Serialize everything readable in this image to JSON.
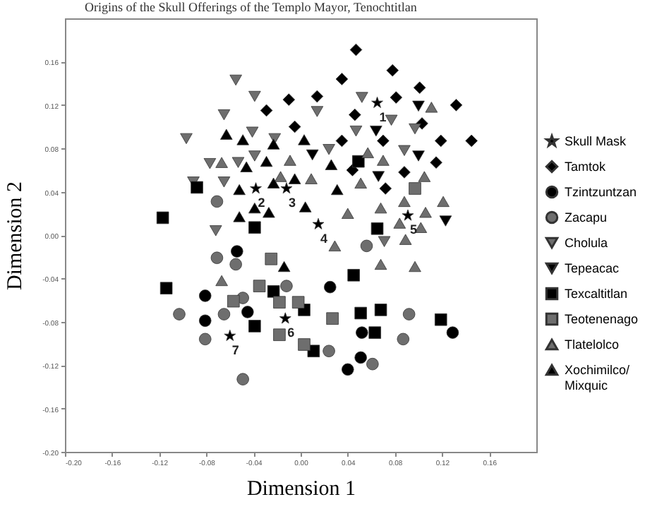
{
  "chart_data": {
    "type": "scatter",
    "xlabel": "Dimension 1",
    "ylabel": "Dimension 2",
    "xlim": [
      -0.2,
      0.2
    ],
    "ylim": [
      -0.2,
      0.2
    ],
    "xticks": [
      {
        "value": -0.2,
        "label": "-0.20"
      },
      {
        "value": -0.16,
        "label": "-0.16"
      },
      {
        "value": -0.12,
        "label": "-0.12"
      },
      {
        "value": -0.08,
        "label": "-0.08"
      },
      {
        "value": -0.04,
        "label": "-0.04"
      },
      {
        "value": 0,
        "label": "0.00"
      },
      {
        "value": 0.04,
        "label": "0.04"
      },
      {
        "value": 0.08,
        "label": "0.08"
      },
      {
        "value": 0.12,
        "label": "0.12"
      },
      {
        "value": 0.16,
        "label": "0.16"
      }
    ],
    "yticks": [
      {
        "value": -0.2,
        "label": "-0.20"
      },
      {
        "value": -0.16,
        "label": "-0.16"
      },
      {
        "value": -0.12,
        "label": "-0.12"
      },
      {
        "value": -0.08,
        "label": "-0.08"
      },
      {
        "value": -0.04,
        "label": "-0.04"
      },
      {
        "value": 0,
        "label": "0.00"
      },
      {
        "value": 0.04,
        "label": "0.04"
      },
      {
        "value": 0.08,
        "label": "0.08"
      },
      {
        "value": 0.12,
        "label": "0.12"
      },
      {
        "value": 0.16,
        "label": "0.16"
      }
    ],
    "legend": "right",
    "grid": false,
    "series": [
      {
        "name": "Skull Mask",
        "color": "#000000",
        "marker": "star",
        "x": [
          0.065,
          -0.038,
          -0.012,
          0.015,
          0.091,
          -0.013,
          -0.06
        ],
        "values": [
          0.122,
          0.043,
          0.043,
          0.01,
          0.018,
          -0.077,
          -0.093
        ]
      },
      {
        "name": "Tamtok",
        "color": "#000000",
        "marker": "diamond",
        "x": [
          -0.01,
          -0.029,
          -0.005,
          0.047,
          0.078,
          0.035,
          0.014,
          0.101,
          0.081,
          0.132,
          0.046,
          0.103,
          0.035,
          0.07,
          0.119,
          0.145,
          0.044,
          0.115,
          0.088,
          0.072
        ],
        "values": [
          0.125,
          0.115,
          0.1,
          0.171,
          0.152,
          0.144,
          0.128,
          0.136,
          0.127,
          0.12,
          0.111,
          0.103,
          0.087,
          0.087,
          0.087,
          0.087,
          0.06,
          0.067,
          0.058,
          0.043
        ]
      },
      {
        "name": "Tzintzuntzan",
        "color": "#000000",
        "marker": "circle",
        "x": [
          -0.054,
          -0.081,
          -0.081,
          -0.045,
          0.025,
          0.129,
          0.052,
          0.051,
          0.04
        ],
        "values": [
          -0.015,
          -0.056,
          -0.079,
          -0.071,
          -0.048,
          -0.09,
          -0.09,
          -0.113,
          -0.124
        ]
      },
      {
        "name": "Zacapu",
        "color": "#6e6e6e",
        "marker": "circle",
        "x": [
          -0.071,
          -0.071,
          -0.055,
          -0.012,
          -0.049,
          -0.103,
          -0.065,
          -0.081,
          -0.049,
          0.056,
          0.092,
          0.087,
          0.024,
          0.061
        ],
        "values": [
          0.031,
          -0.021,
          -0.027,
          -0.047,
          -0.058,
          -0.073,
          -0.073,
          -0.096,
          -0.133,
          -0.01,
          -0.073,
          -0.096,
          -0.107,
          -0.119
        ]
      },
      {
        "name": "Cholula",
        "color": "#6e6e6e",
        "marker": "triangle-down",
        "x": [
          -0.055,
          -0.039,
          -0.065,
          -0.097,
          -0.041,
          -0.022,
          -0.077,
          -0.053,
          -0.039,
          -0.091,
          -0.065,
          -0.072,
          0.052,
          0.014,
          0.077,
          0.047,
          0.097,
          0.024,
          0.088,
          0.071
        ],
        "values": [
          0.143,
          0.128,
          0.111,
          0.089,
          0.095,
          0.089,
          0.066,
          0.067,
          0.073,
          0.049,
          0.049,
          0.004,
          0.127,
          0.114,
          0.106,
          0.096,
          0.098,
          0.079,
          0.078,
          -0.006
        ]
      },
      {
        "name": "Tepeacac",
        "color": "#000000",
        "marker": "triangle-down",
        "x": [
          0.1,
          0.064,
          0.01,
          0.1,
          0.066,
          0.123
        ],
        "values": [
          0.119,
          0.096,
          0.074,
          0.073,
          0.054,
          0.013
        ]
      },
      {
        "name": "Texcaltitlan",
        "color": "#000000",
        "marker": "square",
        "x": [
          -0.088,
          -0.117,
          -0.039,
          0.049,
          0.065,
          -0.114,
          -0.039,
          -0.023,
          0.045,
          0.003,
          0.051,
          0.068,
          0.119,
          0.063,
          0.011
        ],
        "values": [
          0.044,
          0.016,
          0.007,
          0.068,
          0.006,
          -0.049,
          -0.084,
          -0.052,
          -0.037,
          -0.069,
          -0.072,
          -0.069,
          -0.078,
          -0.09,
          -0.107
        ]
      },
      {
        "name": "Teotenenago",
        "color": "#6e6e6e",
        "marker": "square",
        "x": [
          0.097,
          -0.025,
          -0.035,
          -0.057,
          -0.018,
          -0.018,
          -0.002,
          0.027,
          0.003
        ],
        "values": [
          0.043,
          -0.022,
          -0.047,
          -0.061,
          -0.062,
          -0.092,
          -0.062,
          -0.077,
          -0.101
        ]
      },
      {
        "name": "Tlatelolco",
        "color": "#6e6e6e",
        "marker": "triangle",
        "x": [
          -0.067,
          -0.009,
          -0.017,
          0.111,
          0.057,
          0.07,
          0.009,
          0.051,
          0.105,
          0.04,
          0.068,
          0.088,
          0.121,
          0.106,
          0.084,
          0.102,
          -0.067,
          0.029,
          0.089,
          0.068,
          0.097
        ],
        "values": [
          0.067,
          0.069,
          0.054,
          0.118,
          0.076,
          0.069,
          0.052,
          0.048,
          0.054,
          0.02,
          0.025,
          0.031,
          0.031,
          0.021,
          0.011,
          0.007,
          -0.042,
          -0.01,
          -0.004,
          -0.027,
          -0.029
        ]
      },
      {
        "name": "Xochimilco/ Mixquic",
        "color": "#000000",
        "marker": "triangle",
        "x": [
          -0.063,
          -0.049,
          -0.023,
          -0.046,
          -0.029,
          -0.023,
          -0.005,
          -0.052,
          -0.039,
          -0.052,
          -0.027,
          0.003,
          0.026,
          0.031,
          0.004,
          -0.014
        ],
        "values": [
          0.093,
          0.088,
          0.084,
          0.063,
          0.068,
          0.048,
          0.052,
          0.042,
          0.025,
          0.017,
          0.021,
          0.088,
          0.065,
          0.042,
          0.026,
          -0.029
        ]
      }
    ],
    "annotations": [
      "Origins of the Skull Offerings of the Templo Mayor, Tenochtitlan",
      {
        "text": "1",
        "x": 0.065,
        "y": 0.122
      },
      {
        "text": "2",
        "x": -0.038,
        "y": 0.043
      },
      {
        "text": "3",
        "x": -0.012,
        "y": 0.043
      },
      {
        "text": "4",
        "x": 0.015,
        "y": 0.01
      },
      {
        "text": "5",
        "x": 0.091,
        "y": 0.018
      },
      {
        "text": "6",
        "x": -0.013,
        "y": -0.077
      },
      {
        "text": "7",
        "x": -0.06,
        "y": -0.093
      }
    ]
  }
}
